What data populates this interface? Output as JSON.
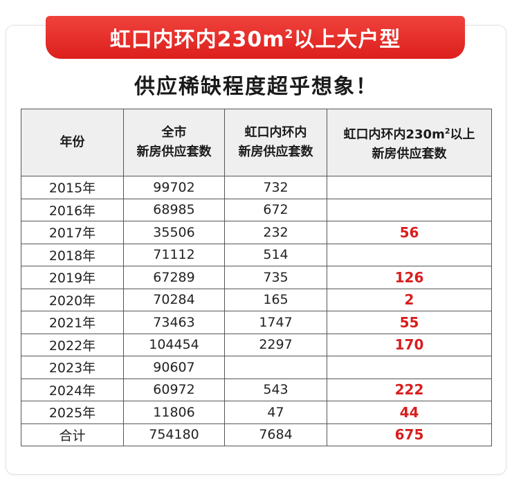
{
  "banner": {
    "title_main": "虹口内环内230m",
    "title_sup": "2",
    "title_tail": "以上大户型"
  },
  "subtitle": "供应稀缺程度超乎想象！",
  "table": {
    "headers": [
      {
        "line1": "年份",
        "line2": ""
      },
      {
        "line1": "全市",
        "line2": "新房供应套数"
      },
      {
        "line1": "虹口内环内",
        "line2": "新房供应套数"
      },
      {
        "line1_main": "虹口内环内230m",
        "line1_sup": "2",
        "line1_tail": "以上",
        "line2": "新房供应套数"
      }
    ],
    "rows": [
      {
        "year": "2015年",
        "city": "99702",
        "hongkou": "732",
        "large": ""
      },
      {
        "year": "2016年",
        "city": "68985",
        "hongkou": "672",
        "large": ""
      },
      {
        "year": "2017年",
        "city": "35506",
        "hongkou": "232",
        "large": "56"
      },
      {
        "year": "2018年",
        "city": "71112",
        "hongkou": "514",
        "large": ""
      },
      {
        "year": "2019年",
        "city": "67289",
        "hongkou": "735",
        "large": "126"
      },
      {
        "year": "2020年",
        "city": "70284",
        "hongkou": "165",
        "large": "2"
      },
      {
        "year": "2021年",
        "city": "73463",
        "hongkou": "1747",
        "large": "55"
      },
      {
        "year": "2022年",
        "city": "104454",
        "hongkou": "2297",
        "large": "170"
      },
      {
        "year": "2023年",
        "city": "90607",
        "hongkou": "",
        "large": ""
      },
      {
        "year": "2024年",
        "city": "60972",
        "hongkou": "543",
        "large": "222"
      },
      {
        "year": "2025年",
        "city": "11806",
        "hongkou": "47",
        "large": "44"
      },
      {
        "year": "合计",
        "city": "754180",
        "hongkou": "7684",
        "large": "675"
      }
    ]
  },
  "colors": {
    "banner_red": "#e0231f",
    "highlight_red": "#d81e1e",
    "header_bg": "#efefef"
  }
}
